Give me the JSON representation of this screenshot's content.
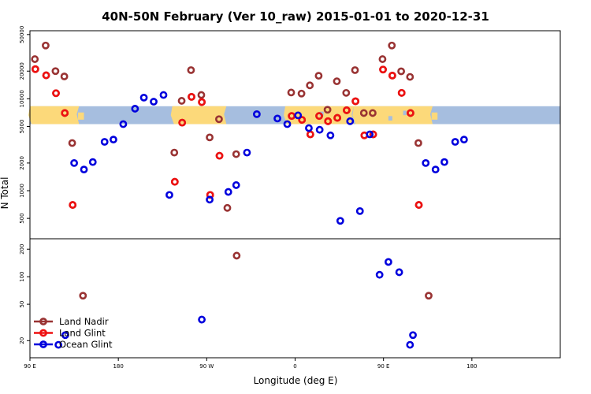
{
  "chart_data": {
    "type": "scatter",
    "title": "40N-50N February (Ver 10_raw)   2015-01-01 to 2020-12-31",
    "xlabel": "Longitude (deg E)",
    "ylabel": "N Total",
    "y_scale": "log",
    "x_range_note": "longitude wraps: 90 E → 180 → 90 W → 0 → 90 E → 180 (540 degrees of wrapped longitude)",
    "xlim": [
      90,
      630
    ],
    "x_ticks": [
      {
        "value": 90,
        "label": "90 E"
      },
      {
        "value": 180,
        "label": "180"
      },
      {
        "value": 270,
        "label": "90 W"
      },
      {
        "value": 360,
        "label": "0"
      },
      {
        "value": 450,
        "label": "90 E"
      },
      {
        "value": 540,
        "label": "180"
      }
    ],
    "panels": [
      {
        "name": "upper",
        "ylim": [
          300,
          55000
        ],
        "y_ticks": [
          {
            "value": 500,
            "label": "500"
          },
          {
            "value": 1000,
            "label": "1000"
          },
          {
            "value": 2000,
            "label": "2000"
          },
          {
            "value": 5000,
            "label": "5000"
          },
          {
            "value": 10000,
            "label": "10000"
          },
          {
            "value": 20000,
            "label": "20000"
          },
          {
            "value": 50000,
            "label": "50000"
          }
        ]
      },
      {
        "name": "lower",
        "ylim": [
          13,
          260
        ],
        "y_ticks": [
          {
            "value": 20,
            "label": "20"
          },
          {
            "value": 50,
            "label": "50"
          },
          {
            "value": 100,
            "label": "100"
          },
          {
            "value": 200,
            "label": "200"
          }
        ]
      }
    ],
    "map_strip": {
      "y_range": [
        5300,
        8300
      ],
      "ocean_color": "#a6bedf",
      "land_color": "#fcd97a"
    },
    "legend": {
      "position": "bottom-left"
    },
    "series": [
      {
        "name": "Land Nadir",
        "color": "#993333",
        "points": [
          [
            95,
            27000
          ],
          [
            95.5,
            21000
          ],
          [
            106,
            38000
          ],
          [
            106.5,
            18000
          ],
          [
            116,
            20000
          ],
          [
            116.5,
            11500
          ],
          [
            125,
            17500
          ],
          [
            125.5,
            7000
          ],
          [
            133,
            3300
          ],
          [
            133.5,
            700
          ],
          [
            144,
            62
          ],
          [
            237,
            2600
          ],
          [
            237.5,
            1250
          ],
          [
            244.5,
            9500
          ],
          [
            245,
            5500
          ],
          [
            254,
            20500
          ],
          [
            254.5,
            10500
          ],
          [
            264.5,
            11000
          ],
          [
            265,
            9200
          ],
          [
            273,
            3800
          ],
          [
            273.5,
            900
          ],
          [
            282.5,
            6000
          ],
          [
            283,
            2400
          ],
          [
            291,
            650
          ],
          [
            300,
            2500
          ],
          [
            300.5,
            170
          ],
          [
            356,
            11700
          ],
          [
            356.5,
            6500
          ],
          [
            366.5,
            11400
          ],
          [
            367,
            5900
          ],
          [
            375,
            14000
          ],
          [
            375.5,
            4100
          ],
          [
            384,
            17800
          ],
          [
            384.5,
            6500
          ],
          [
            393,
            7600
          ],
          [
            393.5,
            5700
          ],
          [
            402.5,
            15500
          ],
          [
            403,
            6200
          ],
          [
            412,
            11600
          ],
          [
            412.5,
            7500
          ],
          [
            421,
            20500
          ],
          [
            421.5,
            9400
          ],
          [
            430,
            7000
          ],
          [
            430.5,
            4000
          ],
          [
            439,
            7000
          ],
          [
            439.5,
            4100
          ],
          [
            449,
            27000
          ],
          [
            449.5,
            20800
          ],
          [
            458.5,
            38000
          ],
          [
            459,
            17900
          ],
          [
            468,
            19900
          ],
          [
            468.5,
            11600
          ],
          [
            477,
            17300
          ],
          [
            477.5,
            7000
          ],
          [
            485.5,
            3300
          ],
          [
            486,
            700
          ],
          [
            496,
            62
          ]
        ]
      },
      {
        "name": "Land Glint",
        "color": "#ee1111",
        "points": [
          [
            95.5,
            21000
          ],
          [
            106.5,
            18000
          ],
          [
            116.5,
            11500
          ],
          [
            125.5,
            7000
          ],
          [
            133.5,
            700
          ],
          [
            237.5,
            1250
          ],
          [
            245,
            5500
          ],
          [
            254.5,
            10500
          ],
          [
            265,
            9200
          ],
          [
            273.5,
            900
          ],
          [
            283,
            2400
          ],
          [
            356.5,
            6500
          ],
          [
            367,
            5900
          ],
          [
            375.5,
            4100
          ],
          [
            384.5,
            6500
          ],
          [
            393.5,
            5700
          ],
          [
            403,
            6200
          ],
          [
            412.5,
            7500
          ],
          [
            421.5,
            9400
          ],
          [
            430.5,
            4000
          ],
          [
            439.5,
            4100
          ],
          [
            449.5,
            20800
          ],
          [
            459,
            17900
          ],
          [
            468.5,
            11600
          ],
          [
            477.5,
            7000
          ],
          [
            486,
            700
          ]
        ]
      },
      {
        "name": "Ocean Glint",
        "color": "#0000dd",
        "points": [
          [
            126,
            23
          ],
          [
            119,
            18
          ],
          [
            135,
            2000
          ],
          [
            145,
            1700
          ],
          [
            154,
            2050
          ],
          [
            166,
            3400
          ],
          [
            175,
            3600
          ],
          [
            185,
            5300
          ],
          [
            197,
            7800
          ],
          [
            206,
            10300
          ],
          [
            216,
            9300
          ],
          [
            226,
            11000
          ],
          [
            232,
            900
          ],
          [
            273,
            800
          ],
          [
            265,
            34
          ],
          [
            292,
            970
          ],
          [
            300,
            1150
          ],
          [
            311,
            2600
          ],
          [
            321,
            6800
          ],
          [
            342,
            6100
          ],
          [
            352,
            5300
          ],
          [
            363,
            6600
          ],
          [
            374,
            4800
          ],
          [
            385,
            4600
          ],
          [
            396,
            4000
          ],
          [
            406,
            470
          ],
          [
            416,
            5700
          ],
          [
            426,
            600
          ],
          [
            436,
            4100
          ],
          [
            446,
            105
          ],
          [
            455,
            145
          ],
          [
            466,
            112
          ],
          [
            477,
            18
          ],
          [
            480,
            23
          ],
          [
            493,
            2000
          ],
          [
            503,
            1700
          ],
          [
            512,
            2050
          ],
          [
            523,
            3400
          ],
          [
            532,
            3600
          ]
        ]
      }
    ]
  }
}
